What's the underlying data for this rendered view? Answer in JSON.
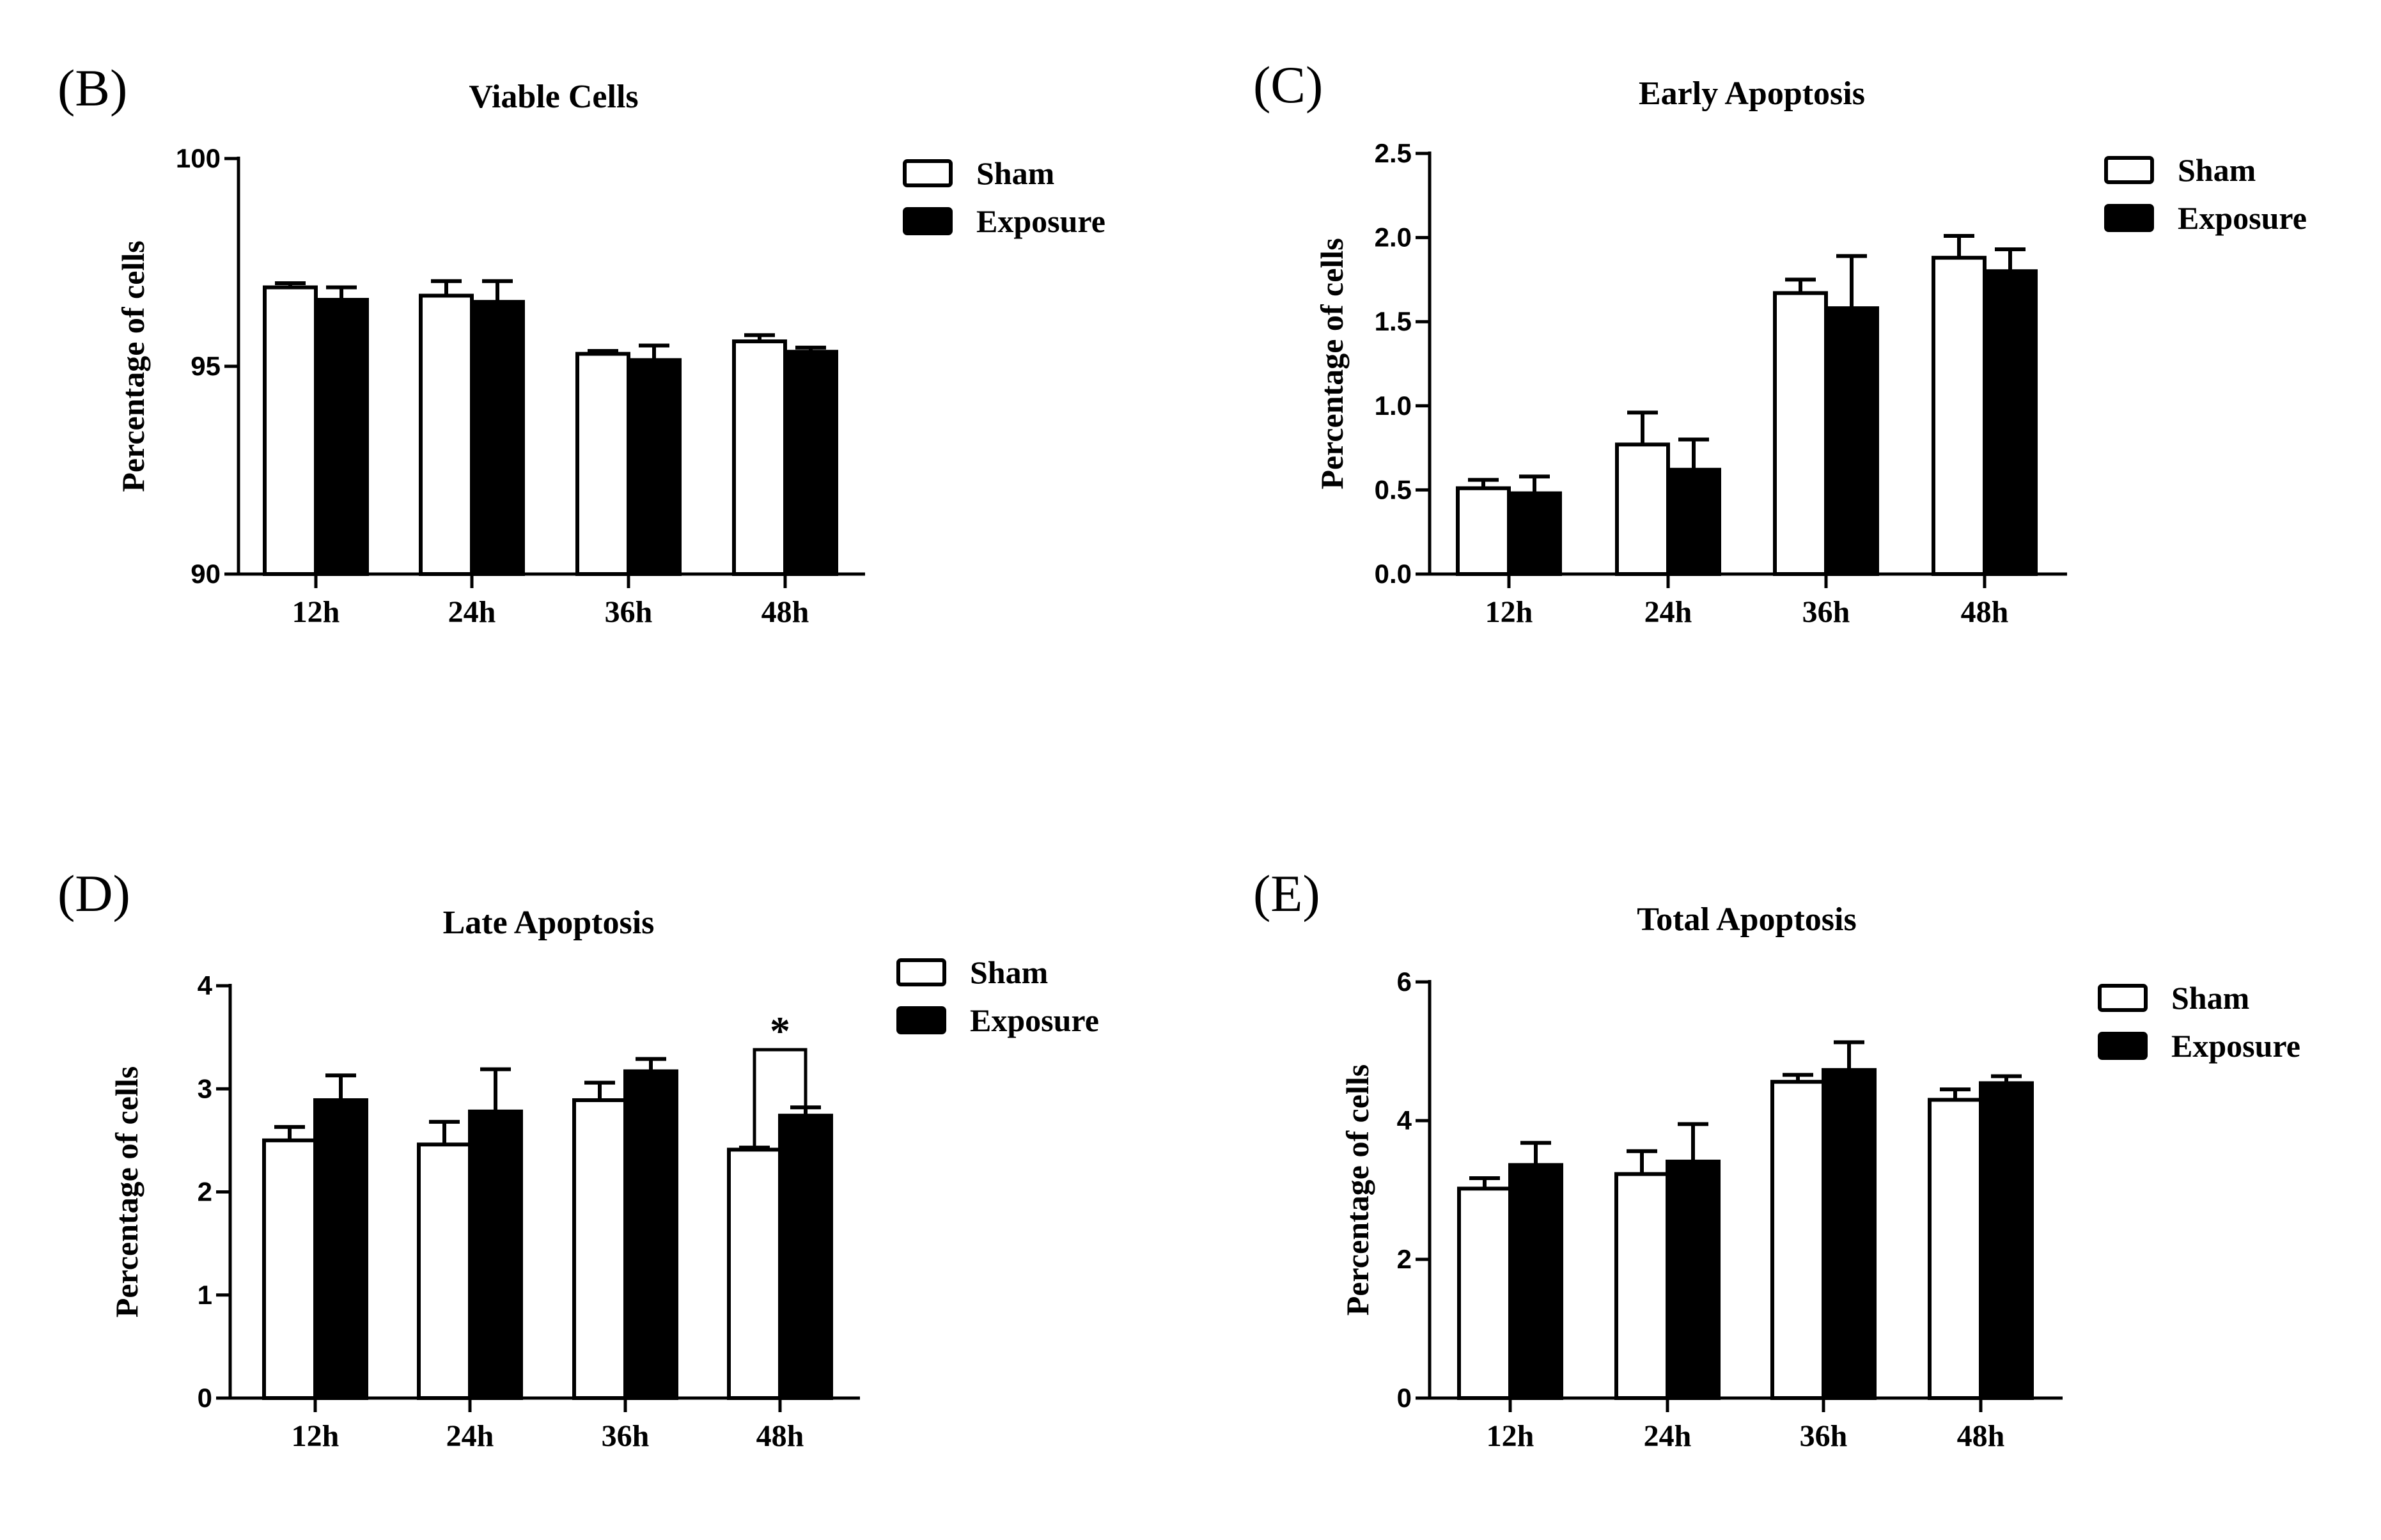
{
  "chart_data": [
    {
      "panel": "(B)",
      "type": "bar",
      "title": "Viable Cells",
      "xlabel": "",
      "ylabel": "Percentage of cells",
      "categories": [
        "12h",
        "24h",
        "36h",
        "48h"
      ],
      "ylim": [
        90,
        100
      ],
      "yticks": [
        "90",
        "95",
        "100"
      ],
      "grid": false,
      "legend_position": "top-right",
      "series": [
        {
          "name": "Sham",
          "color": "#ffffff",
          "values": [
            96.9,
            96.7,
            95.3,
            95.6
          ],
          "errors": [
            0.1,
            0.35,
            0.07,
            0.15
          ]
        },
        {
          "name": "Exposure",
          "color": "#000000",
          "values": [
            96.6,
            96.55,
            95.15,
            95.35
          ],
          "errors": [
            0.3,
            0.5,
            0.35,
            0.1
          ]
        }
      ],
      "annotations": []
    },
    {
      "panel": "(C)",
      "type": "bar",
      "title": "Early Apoptosis",
      "xlabel": "",
      "ylabel": "Percentage of cells",
      "categories": [
        "12h",
        "24h",
        "36h",
        "48h"
      ],
      "ylim": [
        0,
        2.5
      ],
      "yticks": [
        "0.0",
        "0.5",
        "1.0",
        "1.5",
        "2.0",
        "2.5"
      ],
      "grid": false,
      "legend_position": "top-right",
      "series": [
        {
          "name": "Sham",
          "color": "#ffffff",
          "values": [
            0.51,
            0.77,
            1.67,
            1.88
          ],
          "errors": [
            0.05,
            0.19,
            0.08,
            0.13
          ]
        },
        {
          "name": "Exposure",
          "color": "#000000",
          "values": [
            0.48,
            0.62,
            1.58,
            1.8
          ],
          "errors": [
            0.1,
            0.18,
            0.31,
            0.13
          ]
        }
      ],
      "annotations": []
    },
    {
      "panel": "(D)",
      "type": "bar",
      "title": "Late Apoptosis",
      "xlabel": "",
      "ylabel": "Percentage of cells",
      "categories": [
        "12h",
        "24h",
        "36h",
        "48h"
      ],
      "ylim": [
        0,
        4
      ],
      "yticks": [
        "0",
        "1",
        "2",
        "3",
        "4"
      ],
      "grid": false,
      "legend_position": "top-right",
      "series": [
        {
          "name": "Sham",
          "color": "#ffffff",
          "values": [
            2.5,
            2.46,
            2.89,
            2.41
          ],
          "errors": [
            0.13,
            0.22,
            0.17,
            0.02
          ]
        },
        {
          "name": "Exposure",
          "color": "#000000",
          "values": [
            2.89,
            2.78,
            3.17,
            2.74
          ],
          "errors": [
            0.24,
            0.41,
            0.12,
            0.08
          ]
        }
      ],
      "annotations": [
        {
          "category": "48h",
          "text": "*",
          "bracket_top": 3.38
        }
      ]
    },
    {
      "panel": "(E)",
      "type": "bar",
      "title": "Total Apoptosis",
      "xlabel": "",
      "ylabel": "Percentage of cells",
      "categories": [
        "12h",
        "24h",
        "36h",
        "48h"
      ],
      "ylim": [
        0,
        6
      ],
      "yticks": [
        "0",
        "2",
        "4",
        "6"
      ],
      "grid": false,
      "legend_position": "top-right",
      "series": [
        {
          "name": "Sham",
          "color": "#ffffff",
          "values": [
            3.02,
            3.23,
            4.56,
            4.3
          ],
          "errors": [
            0.15,
            0.33,
            0.1,
            0.15
          ]
        },
        {
          "name": "Exposure",
          "color": "#000000",
          "values": [
            3.36,
            3.41,
            4.73,
            4.54
          ],
          "errors": [
            0.32,
            0.54,
            0.4,
            0.1
          ]
        }
      ],
      "annotations": []
    }
  ]
}
